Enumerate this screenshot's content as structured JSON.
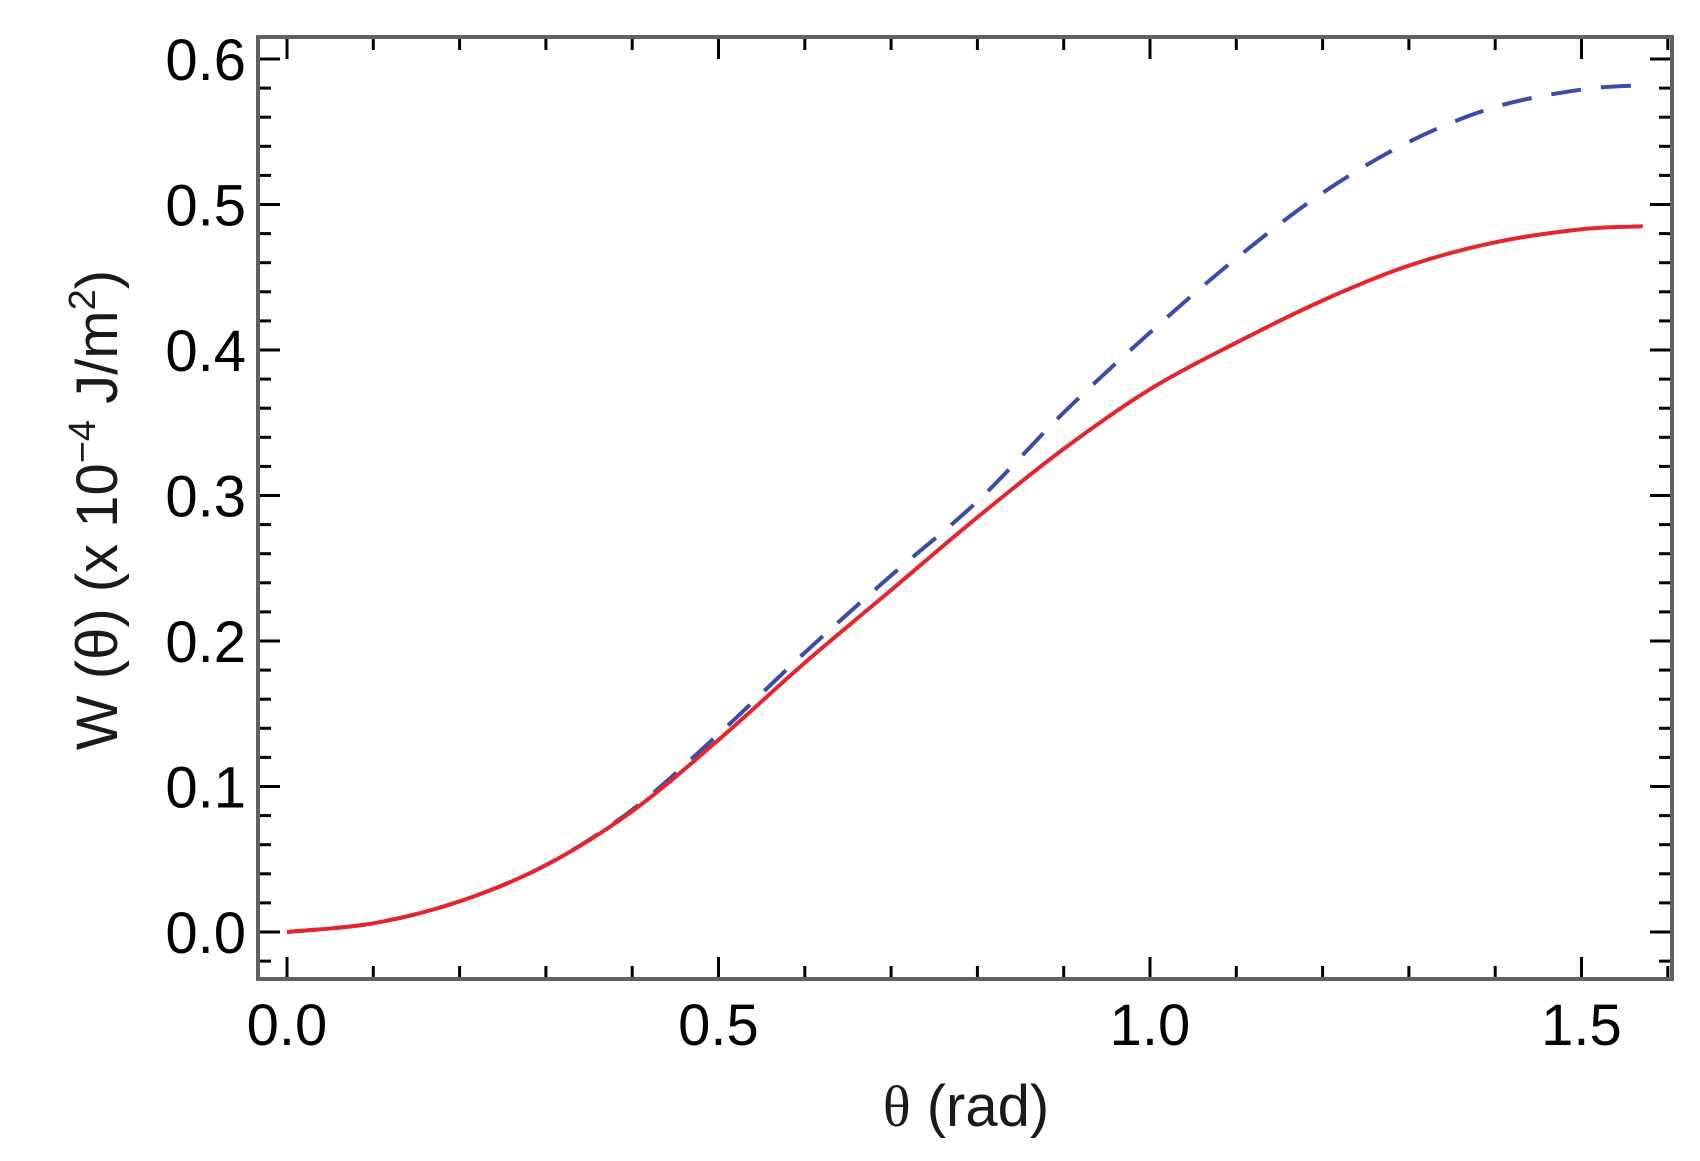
{
  "chart_data": {
    "type": "line",
    "title": "",
    "xlabel": "θ (rad)",
    "ylabel": "W (θ) (x 10⁻⁴ J/m²)",
    "ylabel_parts": {
      "main": "W (θ) (x 10",
      "exp": "−4",
      "unit": " J/m",
      "unit_exp": "2",
      "close": ")"
    },
    "xlabel_parts": {
      "symbol": "θ",
      "rest": " (rad)"
    },
    "xlim": [
      -0.034,
      1.605
    ],
    "ylim": [
      -0.033,
      0.615
    ],
    "grid": false,
    "legend": null,
    "x_ticks": [
      0.0,
      0.5,
      1.0,
      1.5
    ],
    "x_tick_labels": [
      "0.0",
      "0.5",
      "1.0",
      "1.5"
    ],
    "y_ticks": [
      0.0,
      0.1,
      0.2,
      0.3,
      0.4,
      0.5,
      0.6
    ],
    "y_tick_labels": [
      "0.0",
      "0.1",
      "0.2",
      "0.3",
      "0.4",
      "0.5",
      "0.6"
    ],
    "x": [
      0.0,
      0.1,
      0.2,
      0.3,
      0.4,
      0.5,
      0.6,
      0.7,
      0.8,
      0.9,
      1.0,
      1.1,
      1.2,
      1.3,
      1.4,
      1.5,
      1.571
    ],
    "series": [
      {
        "name": "solid red",
        "style": "solid",
        "color": "#e8242b",
        "values": [
          0.0,
          0.006,
          0.021,
          0.046,
          0.083,
          0.132,
          0.185,
          0.235,
          0.285,
          0.332,
          0.373,
          0.405,
          0.434,
          0.458,
          0.474,
          0.483,
          0.485
        ]
      },
      {
        "name": "dashed blue",
        "style": "dashed",
        "color": "#3a4bab",
        "values": [
          0.0,
          0.006,
          0.021,
          0.046,
          0.084,
          0.136,
          0.192,
          0.245,
          0.296,
          0.357,
          0.412,
          0.463,
          0.508,
          0.543,
          0.567,
          0.579,
          0.582
        ]
      }
    ]
  },
  "colors": {
    "frame": "#5f6166",
    "tick": "#000000",
    "background": "#ffffff"
  }
}
